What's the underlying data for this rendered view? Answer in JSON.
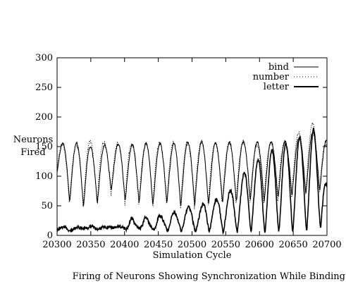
{
  "chart_data": {
    "type": "line",
    "title": "",
    "xlabel": "Simulation Cycle",
    "ylabel": "Neurons Fired",
    "xlim": [
      20300,
      20700
    ],
    "ylim": [
      0,
      300
    ],
    "x_ticks": [
      20300,
      20350,
      20400,
      20450,
      20500,
      20550,
      20600,
      20650,
      20700
    ],
    "y_ticks": [
      0,
      50,
      100,
      150,
      200,
      250,
      300
    ],
    "grid": false,
    "legend_position": "top-right",
    "series": [
      {
        "name": "bind",
        "style": "solid-thin",
        "period": 20.6,
        "points": [
          [
            20300,
            15
          ],
          [
            20320,
            12
          ],
          [
            20340,
            14
          ],
          [
            20360,
            15
          ],
          [
            20380,
            13
          ],
          [
            20400,
            16
          ],
          [
            20410,
            30
          ],
          [
            20420,
            15
          ],
          [
            20430,
            32
          ],
          [
            20440,
            18
          ],
          [
            20450,
            35
          ],
          [
            20460,
            28
          ],
          [
            20470,
            40
          ],
          [
            20480,
            35
          ],
          [
            20490,
            45
          ],
          [
            20500,
            50
          ],
          [
            20510,
            42
          ],
          [
            20520,
            60
          ],
          [
            20530,
            55
          ],
          [
            20540,
            65
          ],
          [
            20550,
            70
          ],
          [
            20560,
            80
          ],
          [
            20570,
            95
          ],
          [
            20580,
            110
          ],
          [
            20590,
            120
          ],
          [
            20600,
            130
          ],
          [
            20610,
            135
          ],
          [
            20620,
            145
          ],
          [
            20630,
            150
          ],
          [
            20640,
            155
          ],
          [
            20650,
            160
          ],
          [
            20660,
            165
          ],
          [
            20670,
            170
          ],
          [
            20680,
            180
          ],
          [
            20690,
            160
          ],
          [
            20700,
            80
          ]
        ],
        "troughs": [
          [
            20300,
            88
          ],
          [
            20320,
            55
          ],
          [
            20340,
            48
          ],
          [
            20360,
            55
          ],
          [
            20380,
            75
          ],
          [
            20400,
            58
          ],
          [
            20420,
            55
          ],
          [
            20440,
            50
          ],
          [
            20460,
            55
          ],
          [
            20480,
            48
          ],
          [
            20500,
            52
          ],
          [
            20520,
            50
          ],
          [
            20540,
            55
          ],
          [
            20560,
            55
          ],
          [
            20580,
            60
          ],
          [
            20600,
            55
          ],
          [
            20620,
            62
          ],
          [
            20640,
            65
          ],
          [
            20660,
            70
          ],
          [
            20680,
            70
          ],
          [
            20700,
            80
          ]
        ],
        "peaks": [
          [
            20300,
            155
          ],
          [
            20320,
            157
          ],
          [
            20340,
            155
          ],
          [
            20360,
            145
          ],
          [
            20380,
            158
          ],
          [
            20400,
            150
          ],
          [
            20420,
            155
          ],
          [
            20440,
            155
          ],
          [
            20460,
            155
          ],
          [
            20480,
            155
          ],
          [
            20500,
            158
          ],
          [
            20520,
            158
          ],
          [
            20540,
            155
          ],
          [
            20560,
            158
          ],
          [
            20580,
            158
          ],
          [
            20600,
            158
          ],
          [
            20620,
            157
          ],
          [
            20640,
            158
          ],
          [
            20660,
            165
          ],
          [
            20680,
            175
          ],
          [
            20700,
            160
          ]
        ]
      },
      {
        "name": "number",
        "style": "dotted",
        "note": "dotted trace overlapping bind series with spikes",
        "peaks": [
          [
            20300,
            155
          ],
          [
            20320,
            150
          ],
          [
            20340,
            157
          ],
          [
            20360,
            160
          ],
          [
            20380,
            155
          ],
          [
            20400,
            158
          ],
          [
            20420,
            150
          ],
          [
            20440,
            158
          ],
          [
            20460,
            155
          ],
          [
            20480,
            158
          ],
          [
            20500,
            155
          ],
          [
            20520,
            160
          ],
          [
            20540,
            155
          ],
          [
            20560,
            158
          ],
          [
            20580,
            158
          ],
          [
            20600,
            150
          ],
          [
            20620,
            158
          ],
          [
            20640,
            160
          ],
          [
            20660,
            175
          ],
          [
            20680,
            190
          ],
          [
            20700,
            150
          ]
        ]
      },
      {
        "name": "letter",
        "style": "solid-thick",
        "baseline": [
          [
            20300,
            10
          ],
          [
            20320,
            8
          ],
          [
            20340,
            12
          ],
          [
            20360,
            10
          ],
          [
            20380,
            14
          ],
          [
            20400,
            10
          ],
          [
            20420,
            12
          ],
          [
            20440,
            10
          ],
          [
            20460,
            8
          ],
          [
            20480,
            8
          ],
          [
            20500,
            6
          ],
          [
            20520,
            8
          ],
          [
            20540,
            6
          ],
          [
            20560,
            6
          ],
          [
            20580,
            6
          ],
          [
            20600,
            6
          ],
          [
            20620,
            6
          ],
          [
            20640,
            8
          ],
          [
            20660,
            6
          ],
          [
            20680,
            10
          ],
          [
            20700,
            15
          ]
        ]
      }
    ],
    "caption": "Firing of Neurons Showing Synchronization While Binding"
  }
}
